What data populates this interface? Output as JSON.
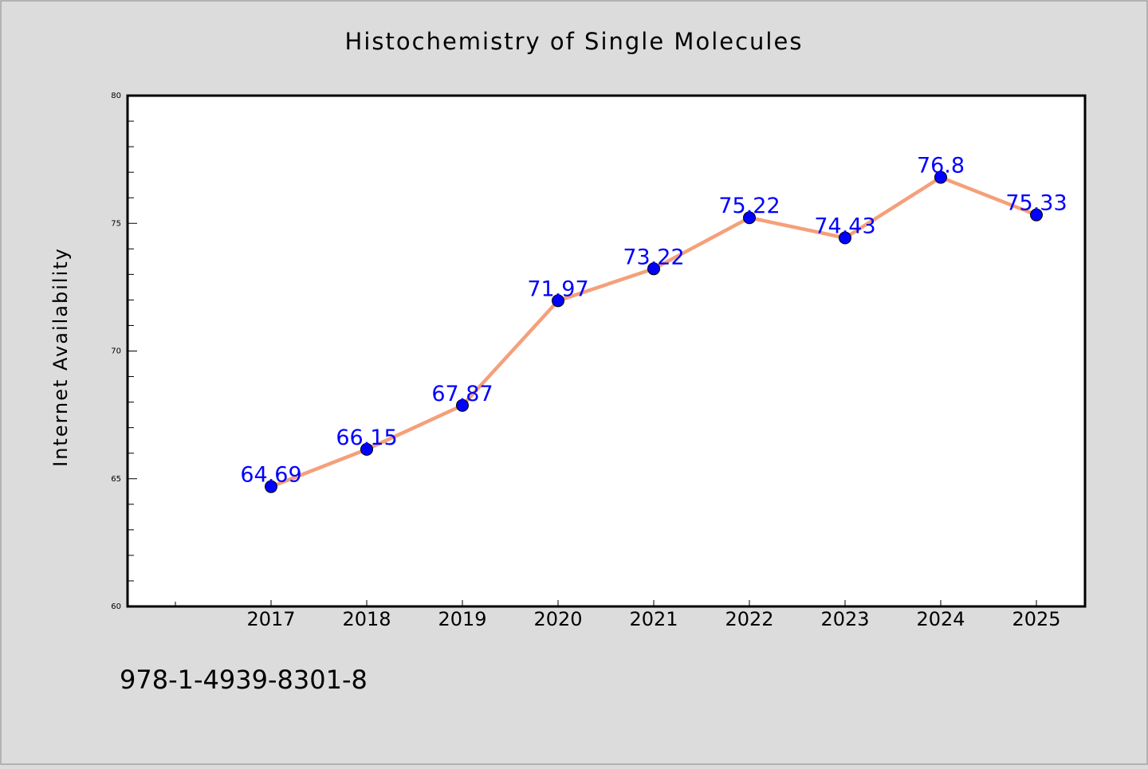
{
  "chart_data": {
    "type": "line",
    "title": "Histochemistry of Single Molecules",
    "xlabel": "",
    "ylabel": "Internet Availability",
    "categories": [
      "2017",
      "2018",
      "2019",
      "2020",
      "2021",
      "2022",
      "2023",
      "2024",
      "2025"
    ],
    "series": [
      {
        "values": [
          64.69,
          66.15,
          67.87,
          71.97,
          73.22,
          75.22,
          74.43,
          76.8,
          75.33
        ],
        "data_labels": [
          "64.69",
          "66.15",
          "67.87",
          "71.97",
          "73.22",
          "75.22",
          "74.43",
          "76.8",
          "75.33"
        ]
      }
    ],
    "ylim": [
      60,
      80
    ],
    "y_ticks": [
      60,
      65,
      70,
      75,
      80
    ],
    "y_tick_labels": [
      "60",
      "65",
      "70",
      "75",
      "80"
    ],
    "grid": false,
    "legend": "none",
    "colors": {
      "background": "#dcdcdc",
      "plot_background": "#ffffff",
      "line": "#f4a07a",
      "marker": "#0000ff",
      "data_label": "#0000ff",
      "text": "#000000"
    }
  },
  "footer": {
    "isbn": "978-1-4939-8301-8"
  }
}
